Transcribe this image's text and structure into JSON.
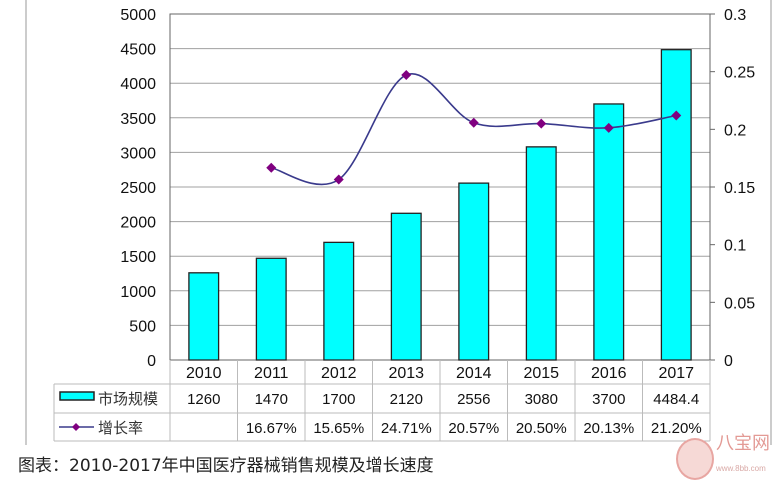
{
  "chart_data": {
    "type": "bar+line",
    "categories": [
      "2010",
      "2011",
      "2012",
      "2013",
      "2014",
      "2015",
      "2016",
      "2017"
    ],
    "series": [
      {
        "name": "市场规模",
        "type": "bar",
        "axis": "left",
        "color": "#00FFFF",
        "values": [
          1260,
          1470,
          1700,
          2120,
          2556,
          3080,
          3700,
          4484.4
        ],
        "labels": [
          "1260",
          "1470",
          "1700",
          "2120",
          "2556",
          "3080",
          "3700",
          "4484.4"
        ]
      },
      {
        "name": "增长率",
        "type": "line",
        "axis": "right",
        "color": "#800080",
        "line_color": "#3a3a8c",
        "values": [
          null,
          0.1667,
          0.1565,
          0.2471,
          0.2057,
          0.205,
          0.2013,
          0.212
        ],
        "labels": [
          "",
          "16.67%",
          "15.65%",
          "24.71%",
          "20.57%",
          "20.50%",
          "20.13%",
          "21.20%"
        ]
      }
    ],
    "y_left": {
      "range": [
        0,
        5000
      ],
      "ticks": [
        "0",
        "500",
        "1000",
        "1500",
        "2000",
        "2500",
        "3000",
        "3500",
        "4000",
        "4500",
        "5000"
      ]
    },
    "y_right": {
      "range": [
        0,
        0.3
      ],
      "ticks": [
        "0",
        "0.05",
        "0.1",
        "0.15",
        "0.2",
        "0.25",
        "0.3"
      ]
    },
    "grid": true,
    "legend": "data-table"
  },
  "caption": "图表：2010-2017年中国医疗器械销售规模及增长速度",
  "watermark": {
    "text": "八宝网",
    "url": "www.8bb.com"
  }
}
